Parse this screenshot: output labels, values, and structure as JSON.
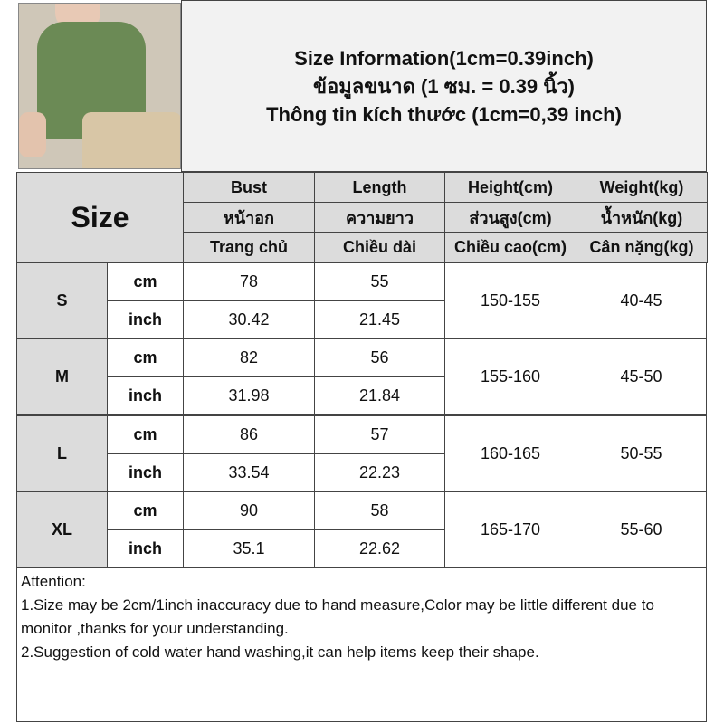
{
  "title": {
    "line1": "Size Information(1cm=0.39inch)",
    "line2": "ข้อมูลขนาด (1 ซม. = 0.39 นิ้ว)",
    "line3": "Thông tin kích thước (1cm=0,39 inch)"
  },
  "size_label": "Size",
  "headers": [
    [
      "Bust",
      "หน้าอก",
      "Trang chủ"
    ],
    [
      "Length",
      "ความยาว",
      "Chiều dài"
    ],
    [
      "Height(cm)",
      "ส่วนสูง(cm)",
      "Chiều cao(cm)"
    ],
    [
      "Weight(kg)",
      "น้ำหนัก(kg)",
      "Cân nặng(kg)"
    ]
  ],
  "rows": [
    {
      "size": "S",
      "cm": [
        "78",
        "55"
      ],
      "inch": [
        "30.42",
        "21.45"
      ],
      "height": "150-155",
      "weight": "40-45"
    },
    {
      "size": "M",
      "cm": [
        "82",
        "56"
      ],
      "inch": [
        "31.98",
        "21.84"
      ],
      "height": "155-160",
      "weight": "45-50"
    },
    {
      "size": "L",
      "cm": [
        "86",
        "57"
      ],
      "inch": [
        "33.54",
        "22.23"
      ],
      "height": "160-165",
      "weight": "50-55"
    },
    {
      "size": "XL",
      "cm": [
        "90",
        "58"
      ],
      "inch": [
        "35.1",
        "22.62"
      ],
      "height": "165-170",
      "weight": "55-60"
    }
  ],
  "unit_cm": "cm",
  "unit_inch": "inch",
  "attention": {
    "heading": "Attention:",
    "line1": "1.Size may be 2cm/1inch inaccuracy due to hand measure,Color may be little different due to monitor ,thanks for your understanding.",
    "line2": "2.Suggestion of cold water hand washing,it can help items keep their shape."
  },
  "colors": {
    "header_bg": "#dcdcdc",
    "shirt": "#6b8a55"
  }
}
